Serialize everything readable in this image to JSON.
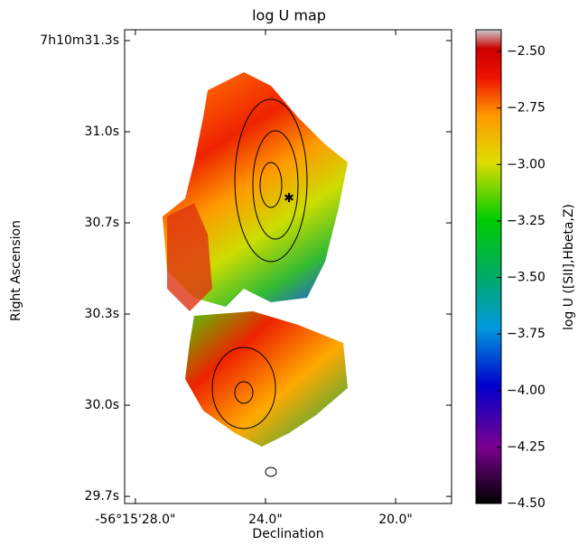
{
  "chart_data": {
    "type": "image",
    "title": "log U map",
    "x_label": "Declination",
    "y_label": "Right Ascension",
    "colorbar_label": "log U ([SII],Hbeta,Z)",
    "xlim": [
      28.33,
      18.28
    ],
    "xticks": [
      {
        "value": 28.0,
        "label": "-56°15'28.0\""
      },
      {
        "value": 24.0,
        "label": "24.0\""
      },
      {
        "value": 20.0,
        "label": "20.0\""
      }
    ],
    "ylim": [
      29.675,
      31.338
    ],
    "yticks": [
      {
        "value": 31.3,
        "label": "7h10m31.3s"
      },
      {
        "value": 30.98,
        "label": "31.0s"
      },
      {
        "value": 30.66,
        "label": "30.7s"
      },
      {
        "value": 30.34,
        "label": "30.3s"
      },
      {
        "value": 30.02,
        "label": "30.0s"
      },
      {
        "value": 29.7,
        "label": "29.7s"
      }
    ],
    "clim": [
      -4.5,
      -2.404
    ],
    "cticks": [
      {
        "value": -2.5,
        "label": "−2.50"
      },
      {
        "value": -2.75,
        "label": "−2.75"
      },
      {
        "value": -3.0,
        "label": "−3.00"
      },
      {
        "value": -3.25,
        "label": "−3.25"
      },
      {
        "value": -3.5,
        "label": "−3.50"
      },
      {
        "value": -3.75,
        "label": "−3.75"
      },
      {
        "value": -4.0,
        "label": "−4.00"
      },
      {
        "value": -4.25,
        "label": "−4.25"
      },
      {
        "value": -4.5,
        "label": "−4.50"
      }
    ]
  }
}
